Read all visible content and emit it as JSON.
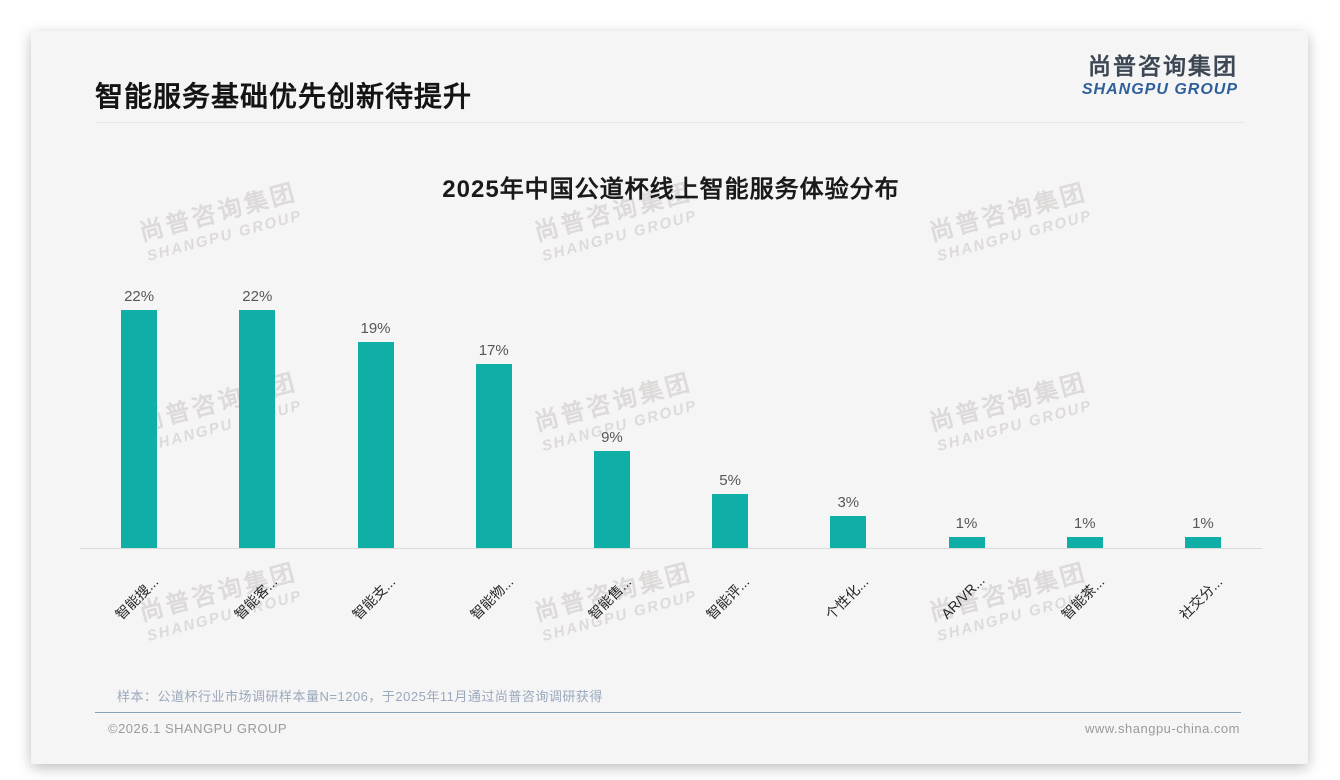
{
  "page": {
    "title": "智能服务基础优先创新待提升",
    "logo": {
      "cn": "尚普咨询集团",
      "en": "SHANGPU GROUP"
    },
    "watermark": {
      "cn": "尚普咨询集团",
      "en": "SHANGPU GROUP"
    },
    "footnote": "样本：公道杯行业市场调研样本量N=1206，于2025年11月通过尚普咨询调研获得",
    "footer_left": "©2026.1 SHANGPU GROUP",
    "footer_right": "www.shangpu-china.com"
  },
  "chart_data": {
    "type": "bar",
    "title": "2025年中国公道杯线上智能服务体验分布",
    "categories": [
      "智能搜...",
      "智能客...",
      "智能支...",
      "智能物...",
      "智能售...",
      "智能评...",
      "个性化...",
      "AR/VR...",
      "智能茶...",
      "社交分..."
    ],
    "values": [
      22,
      22,
      19,
      17,
      9,
      5,
      3,
      1,
      1,
      1
    ],
    "unit": "%",
    "value_labels": [
      "22%",
      "22%",
      "19%",
      "17%",
      "9%",
      "5%",
      "3%",
      "1%",
      "1%",
      "1%"
    ],
    "bar_color": "#0fafa8",
    "ylim": [
      0,
      24
    ],
    "grid": false,
    "legend": null,
    "xlabel": "",
    "ylabel": ""
  }
}
